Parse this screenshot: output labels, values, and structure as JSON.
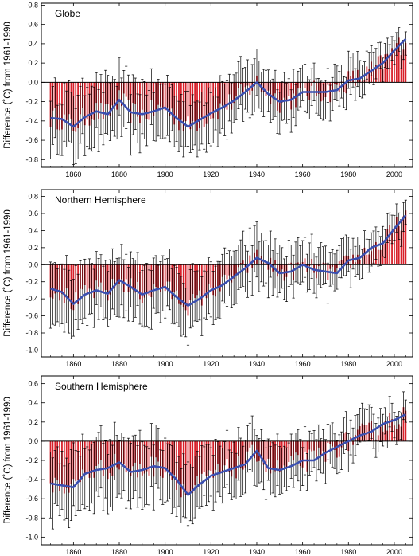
{
  "figure": {
    "xlim": [
      1846,
      2008
    ],
    "x_ticks": [
      1860,
      1880,
      1900,
      1920,
      1940,
      1960,
      1980,
      2000
    ],
    "bar_color": "#d8202a",
    "smooth_color": "#3a4fb0",
    "errorbar_color": "#000000"
  },
  "chart_data": [
    {
      "type": "bar",
      "title": "Globe",
      "ylabel": "Difference (˚C) from 1961-1990",
      "ylim": [
        -0.88,
        0.82
      ],
      "y_ticks": [
        "0.8",
        "0.6",
        "0.4",
        "0.2",
        "0.0",
        "-0.2",
        "-0.4",
        "-0.6",
        "-0.8"
      ],
      "anchors": {
        "years": [
          1850,
          1855,
          1860,
          1865,
          1870,
          1875,
          1880,
          1885,
          1890,
          1895,
          1900,
          1905,
          1910,
          1915,
          1920,
          1925,
          1930,
          1935,
          1940,
          1945,
          1950,
          1955,
          1960,
          1965,
          1970,
          1975,
          1980,
          1985,
          1990,
          1995,
          2000,
          2005
        ],
        "values": [
          -0.37,
          -0.38,
          -0.46,
          -0.36,
          -0.3,
          -0.33,
          -0.18,
          -0.31,
          -0.33,
          -0.3,
          -0.26,
          -0.37,
          -0.46,
          -0.39,
          -0.32,
          -0.26,
          -0.19,
          -0.1,
          0.0,
          -0.12,
          -0.2,
          -0.18,
          -0.1,
          -0.1,
          -0.1,
          -0.08,
          0.02,
          0.04,
          0.12,
          0.2,
          0.33,
          0.45
        ]
      },
      "error": {
        "start": 0.3,
        "end": 0.12
      }
    },
    {
      "type": "bar",
      "title": "Northern Hemisphere",
      "ylabel": "Difference (˚C) from 1961-1990",
      "ylim": [
        -1.08,
        0.88
      ],
      "y_ticks": [
        "0.8",
        "0.6",
        "0.4",
        "0.2",
        "0.0",
        "-0.2",
        "-0.4",
        "-0.6",
        "-0.8",
        "-1.0"
      ],
      "anchors": {
        "years": [
          1850,
          1855,
          1860,
          1865,
          1870,
          1875,
          1880,
          1885,
          1890,
          1895,
          1900,
          1905,
          1910,
          1915,
          1920,
          1925,
          1930,
          1935,
          1940,
          1945,
          1950,
          1955,
          1960,
          1965,
          1970,
          1975,
          1980,
          1985,
          1990,
          1995,
          2000,
          2005
        ],
        "values": [
          -0.28,
          -0.32,
          -0.46,
          -0.35,
          -0.3,
          -0.34,
          -0.18,
          -0.26,
          -0.35,
          -0.3,
          -0.26,
          -0.38,
          -0.48,
          -0.4,
          -0.3,
          -0.24,
          -0.14,
          -0.04,
          0.08,
          0.02,
          -0.1,
          -0.08,
          0.0,
          -0.06,
          -0.08,
          -0.1,
          0.05,
          0.08,
          0.2,
          0.25,
          0.42,
          0.58
        ]
      },
      "error": {
        "start": 0.35,
        "end": 0.15
      }
    },
    {
      "type": "bar",
      "title": "Southern Hemisphere",
      "ylabel": "Difference (˚C) from 1961-1990",
      "ylim": [
        -1.08,
        0.68
      ],
      "y_ticks": [
        "0.6",
        "0.4",
        "0.2",
        "0.0",
        "-0.2",
        "-0.4",
        "-0.6",
        "-0.8",
        "-1.0"
      ],
      "anchors": {
        "years": [
          1850,
          1855,
          1860,
          1865,
          1870,
          1875,
          1880,
          1885,
          1890,
          1895,
          1900,
          1905,
          1910,
          1915,
          1920,
          1925,
          1930,
          1935,
          1940,
          1945,
          1950,
          1955,
          1960,
          1965,
          1970,
          1975,
          1980,
          1985,
          1990,
          1995,
          2000,
          2005
        ],
        "values": [
          -0.44,
          -0.46,
          -0.48,
          -0.34,
          -0.3,
          -0.28,
          -0.22,
          -0.32,
          -0.3,
          -0.26,
          -0.28,
          -0.4,
          -0.56,
          -0.45,
          -0.36,
          -0.32,
          -0.28,
          -0.24,
          -0.1,
          -0.28,
          -0.3,
          -0.26,
          -0.2,
          -0.2,
          -0.12,
          -0.06,
          0.0,
          0.06,
          0.1,
          0.18,
          0.22,
          0.28
        ]
      },
      "error": {
        "start": 0.32,
        "end": 0.14
      }
    }
  ]
}
